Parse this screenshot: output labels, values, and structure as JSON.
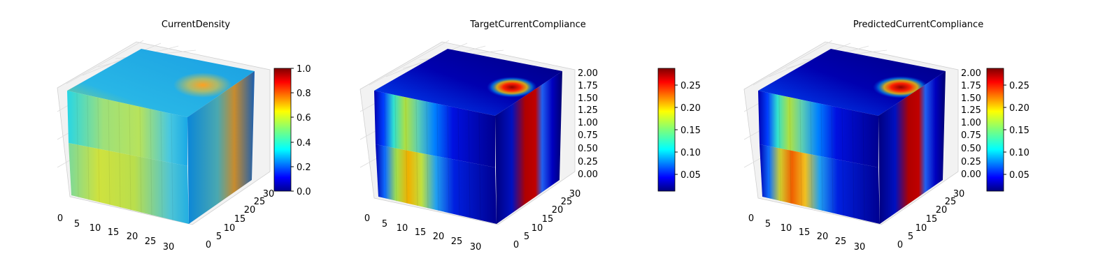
{
  "chart_data": [
    {
      "type": "3d-voxel-heatmap",
      "title": "CurrentDensity",
      "x_ticks": [
        "0",
        "5",
        "10",
        "15",
        "20",
        "25",
        "30"
      ],
      "y_ticks": [
        "0",
        "5",
        "10",
        "15",
        "20",
        "25",
        "30"
      ],
      "z_range": [
        0,
        2
      ],
      "grid": true,
      "colormap": "jet",
      "colorbar": {
        "range": [
          0,
          1
        ],
        "ticks": [
          "0.0",
          "0.2",
          "0.4",
          "0.6",
          "0.8",
          "1.0"
        ]
      }
    },
    {
      "type": "3d-voxel-heatmap",
      "title": "TargetCurrentCompliance",
      "x_ticks": [
        "0",
        "5",
        "10",
        "15",
        "20",
        "25",
        "30"
      ],
      "y_ticks": [
        "0",
        "5",
        "10",
        "15",
        "20",
        "25",
        "30"
      ],
      "z_ticks": [
        "0.00",
        "0.25",
        "0.50",
        "0.75",
        "1.00",
        "1.25",
        "1.50",
        "1.75",
        "2.00"
      ],
      "grid": true,
      "colormap": "jet",
      "colorbar": {
        "range": [
          0.01,
          0.285
        ],
        "ticks": [
          "0.05",
          "0.10",
          "0.15",
          "0.20",
          "0.25"
        ]
      }
    },
    {
      "type": "3d-voxel-heatmap",
      "title": "PredictedCurrentCompliance",
      "x_ticks": [
        "0",
        "5",
        "10",
        "15",
        "20",
        "25",
        "30"
      ],
      "y_ticks": [
        "0",
        "5",
        "10",
        "15",
        "20",
        "25",
        "30"
      ],
      "z_ticks": [
        "0.00",
        "0.25",
        "0.50",
        "0.75",
        "1.00",
        "1.25",
        "1.50",
        "1.75",
        "2.00"
      ],
      "grid": true,
      "colormap": "jet",
      "colorbar": {
        "range": [
          0.01,
          0.285
        ],
        "ticks": [
          "0.05",
          "0.10",
          "0.15",
          "0.20",
          "0.25"
        ]
      }
    }
  ]
}
